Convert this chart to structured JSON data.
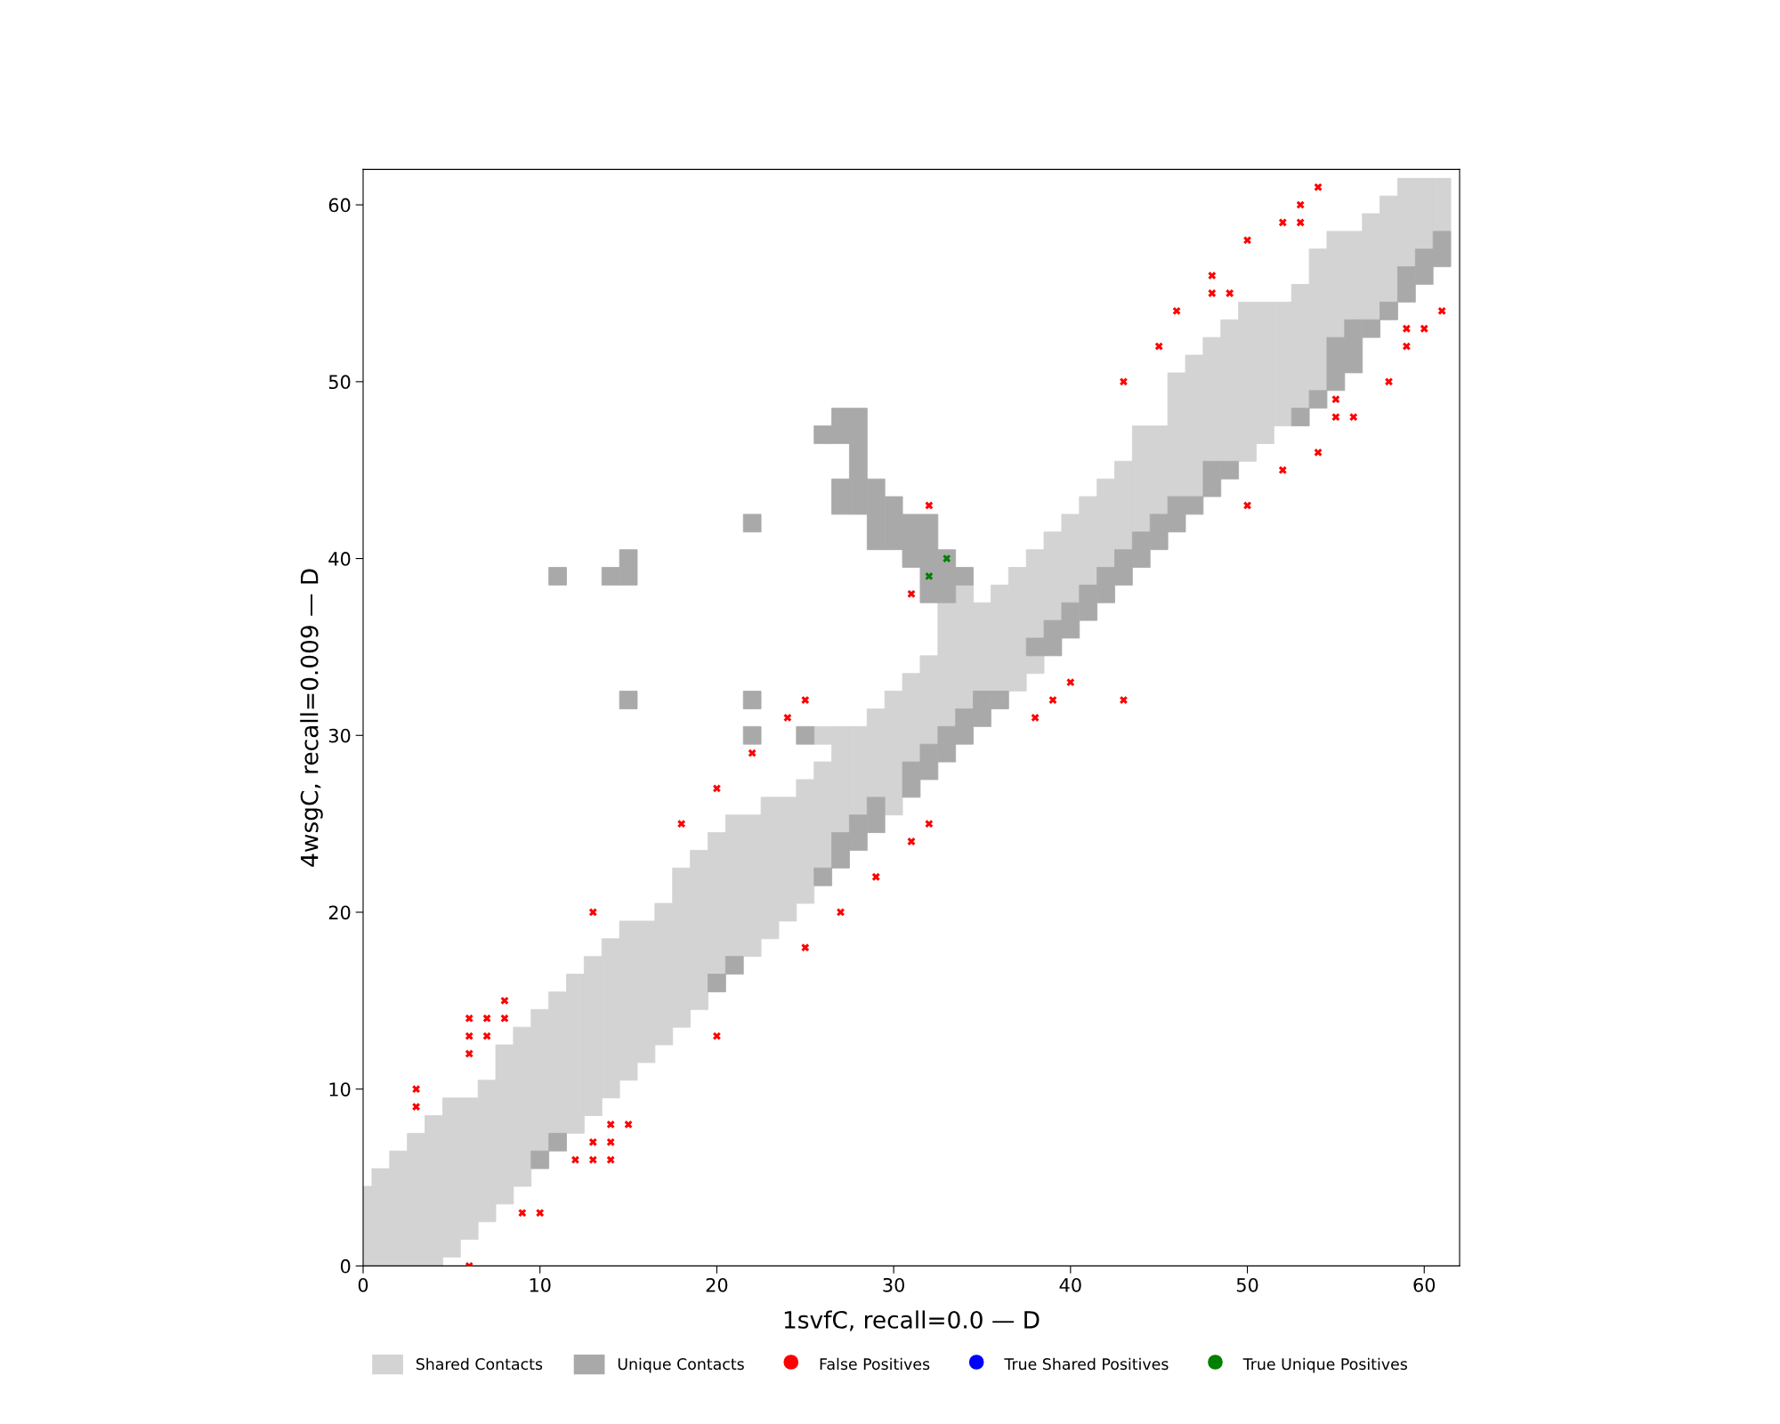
{
  "chart_data": {
    "type": "bar",
    "xlabel": "1svfC, recall=0.0 — D",
    "ylabel": "4wsgC, recall=0.009 — D",
    "xlim": [
      0,
      62
    ],
    "ylim": [
      0,
      62
    ],
    "xticks": [
      0,
      10,
      20,
      30,
      40,
      50,
      60
    ],
    "yticks": [
      0,
      10,
      20,
      30,
      40,
      50,
      60
    ],
    "legend": "bottom",
    "grid": false,
    "series": [
      {
        "name": "Shared Contacts",
        "color": "#d3d3d3",
        "x": [
          0,
          1,
          2,
          3,
          4,
          5,
          6,
          7,
          8,
          9,
          10,
          11,
          12,
          13,
          14,
          15,
          16,
          17,
          18,
          19,
          20,
          21,
          22,
          23,
          24,
          25,
          26,
          27,
          28,
          29,
          30,
          31,
          32,
          33,
          34,
          35,
          36,
          37,
          38,
          39,
          40,
          41,
          42,
          43,
          44,
          45,
          46,
          47,
          48,
          49,
          50,
          51,
          52,
          53,
          54,
          55,
          56,
          57,
          58,
          59,
          60,
          61
        ],
        "base": [
          0,
          0,
          0,
          0,
          0,
          0.5,
          1.5,
          2.5,
          3.5,
          4.5,
          6.5,
          7.5,
          7.5,
          8.5,
          9.5,
          10.5,
          11.5,
          12.5,
          13.5,
          14.5,
          16.5,
          17.5,
          17.5,
          18.5,
          19.5,
          20.5,
          22.5,
          24.5,
          25.5,
          26.5,
          25.5,
          28.5,
          29.5,
          30.5,
          31.5,
          32.5,
          32.5,
          32.5,
          35.5,
          36.5,
          37.5,
          38.5,
          39.5,
          40.5,
          41.5,
          42.5,
          43.5,
          43.5,
          45.5,
          45.5,
          45.5,
          46.5,
          47.5,
          48.5,
          49.5,
          52.5,
          53.5,
          53.5,
          54.5,
          56.5,
          57.5,
          58.5
        ],
        "values": [
          4.5,
          5.5,
          6.5,
          7.5,
          8.5,
          9,
          8,
          8,
          9,
          9,
          8,
          8,
          9,
          9,
          9,
          9,
          8,
          8,
          9,
          9,
          8,
          8,
          8,
          8,
          7,
          7,
          6,
          6,
          5,
          5,
          7,
          5,
          5,
          7,
          7,
          5,
          6,
          7,
          5,
          5,
          5,
          5,
          5,
          5,
          6,
          5,
          7,
          8,
          7,
          8,
          9,
          8,
          7,
          7,
          8,
          6,
          5,
          6,
          6,
          5,
          4,
          3
        ]
      },
      {
        "color": "#d3d3d3",
        "x": [
          26,
          38
        ],
        "base": [
          29.5,
          33.5
        ],
        "values": [
          1,
          1
        ]
      },
      {
        "name": "Unique Contacts",
        "color": "#a9a9a9",
        "x": [
          10,
          11,
          14,
          15,
          20,
          21,
          22,
          25,
          26,
          27,
          28,
          29,
          30,
          31,
          32,
          33,
          34,
          35,
          36,
          38,
          39,
          40,
          41,
          42,
          43,
          44,
          45,
          46,
          47,
          48,
          49,
          53,
          54,
          55,
          56,
          57,
          58,
          59,
          60,
          61
        ],
        "base": [
          5.5,
          6.5,
          38.5,
          31.5,
          15.5,
          16.5,
          29.5,
          29.5,
          21.5,
          22.5,
          23.5,
          24.5,
          40.5,
          26.5,
          27.5,
          28.5,
          29.5,
          30.5,
          31.5,
          34.5,
          34.5,
          35.5,
          36.5,
          37.5,
          38.5,
          39.5,
          40.5,
          41.5,
          42.5,
          43.5,
          44.5,
          47.5,
          48.5,
          49.5,
          50.5,
          52.5,
          53.5,
          54.5,
          55.5,
          56.5
        ],
        "values": [
          1,
          1,
          1,
          1,
          1,
          1,
          1,
          1,
          1,
          2,
          2,
          2,
          3,
          2,
          2,
          2,
          2,
          2,
          1,
          1,
          2,
          2,
          2,
          2,
          2,
          2,
          2,
          2,
          1,
          2,
          1,
          1,
          1,
          3,
          3,
          1,
          1,
          2,
          2,
          2
        ]
      },
      {
        "color": "#a9a9a9",
        "x": [
          11,
          15,
          22,
          26,
          27,
          28,
          29,
          31,
          32,
          33,
          34
        ],
        "base": [
          38.5,
          38.5,
          31.5,
          46.5,
          42.5,
          42.5,
          40.5,
          39.5,
          37.5,
          37.5,
          38.5
        ],
        "values": [
          1,
          2,
          1,
          1,
          2,
          6,
          4,
          3,
          5,
          3,
          1
        ]
      },
      {
        "color": "#a9a9a9",
        "x": [
          22,
          27
        ],
        "base": [
          41.5,
          46.5
        ],
        "values": [
          1,
          2
        ]
      },
      {
        "type": "scatter",
        "name": "False Positives",
        "color": "#ff0000",
        "marker": "cross",
        "x": [
          13,
          27,
          25,
          8,
          6,
          7,
          8,
          6,
          7,
          6,
          20,
          3,
          3,
          14,
          15,
          13,
          14,
          12,
          13,
          14,
          9,
          10,
          6,
          31,
          25,
          24,
          22,
          20,
          18,
          31,
          29,
          40,
          39,
          38,
          43,
          32,
          54,
          53,
          52,
          53,
          50,
          48,
          48,
          49,
          46,
          45,
          43,
          61,
          59,
          60,
          59,
          58,
          55,
          55,
          56,
          54,
          52,
          50,
          32
        ],
        "values": [
          20,
          20,
          18,
          15,
          14,
          14,
          14,
          13,
          13,
          12,
          13,
          10,
          9,
          8,
          8,
          7,
          7,
          6,
          6,
          6,
          3,
          3,
          0,
          38,
          32,
          31,
          29,
          27,
          25,
          24,
          22,
          33,
          32,
          31,
          32,
          25,
          61,
          60,
          59,
          59,
          58,
          56,
          55,
          55,
          54,
          52,
          50,
          54,
          53,
          53,
          52,
          50,
          49,
          48,
          48,
          46,
          45,
          43,
          43
        ]
      },
      {
        "type": "scatter",
        "name": "True Shared Positives",
        "color": "#0000ff",
        "marker": "cross"
      },
      {
        "type": "scatter",
        "name": "True Unique Positives",
        "color": "#008000",
        "marker": "cross",
        "x": [
          32,
          33
        ],
        "values": [
          39,
          40
        ]
      }
    ]
  }
}
